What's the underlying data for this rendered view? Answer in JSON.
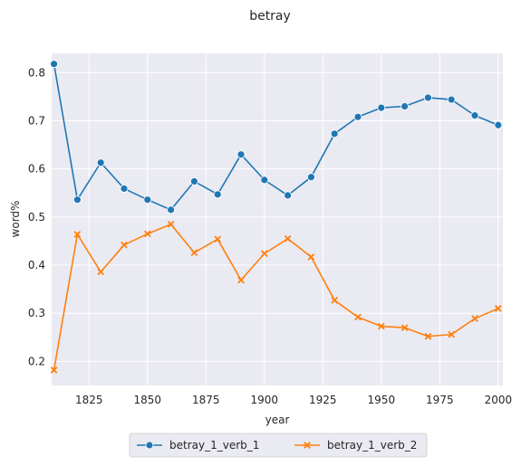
{
  "chart_data": {
    "type": "line",
    "title": "betray",
    "xlabel": "year",
    "ylabel": "word%",
    "xlim": [
      1809,
      2002
    ],
    "ylim": [
      0.15,
      0.84
    ],
    "xticks": [
      1825,
      1850,
      1875,
      1900,
      1925,
      1950,
      1975,
      2000
    ],
    "yticks": [
      0.2,
      0.3,
      0.4,
      0.5,
      0.6,
      0.7,
      0.8
    ],
    "grid": true,
    "legend_position": "bottom-center",
    "x": [
      1810,
      1820,
      1830,
      1840,
      1850,
      1860,
      1870,
      1880,
      1890,
      1900,
      1910,
      1920,
      1930,
      1940,
      1950,
      1960,
      1970,
      1980,
      1990,
      2000
    ],
    "series": [
      {
        "name": "betray_1_verb_1",
        "color": "#1f77b4",
        "marker": "circle",
        "values": [
          0.818,
          0.536,
          0.613,
          0.559,
          0.536,
          0.515,
          0.574,
          0.547,
          0.63,
          0.577,
          0.545,
          0.583,
          0.673,
          0.708,
          0.727,
          0.73,
          0.748,
          0.744,
          0.711,
          0.691
        ]
      },
      {
        "name": "betray_1_verb_2",
        "color": "#ff7f0e",
        "marker": "x",
        "values": [
          0.182,
          0.464,
          0.386,
          0.442,
          0.465,
          0.485,
          0.426,
          0.454,
          0.369,
          0.424,
          0.455,
          0.417,
          0.327,
          0.292,
          0.273,
          0.27,
          0.252,
          0.256,
          0.289,
          0.31
        ]
      }
    ]
  }
}
